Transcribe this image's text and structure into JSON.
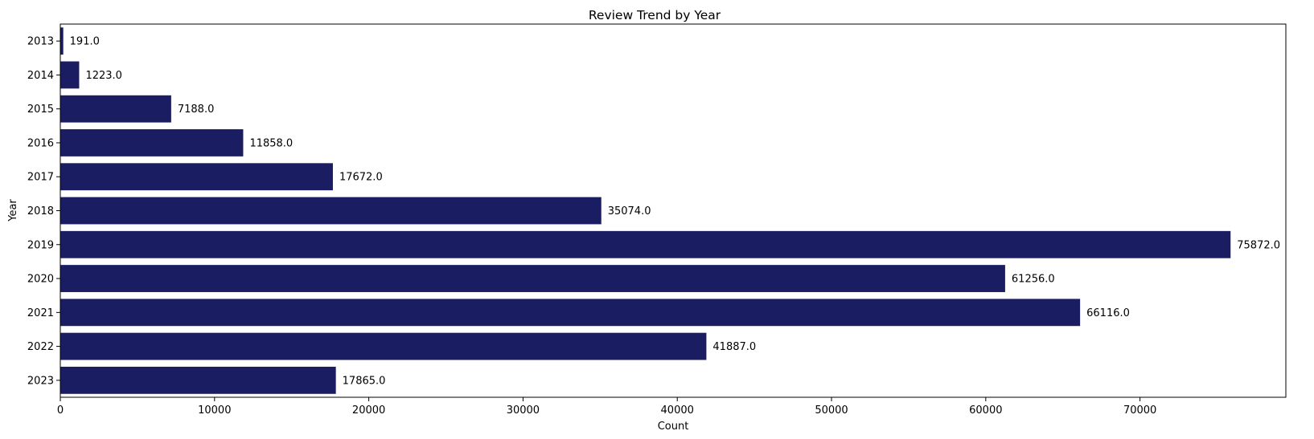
{
  "chart_data": {
    "type": "bar",
    "orientation": "horizontal",
    "title": "Review Trend by Year",
    "xlabel": "Count",
    "ylabel": "Year",
    "categories": [
      "2013",
      "2014",
      "2015",
      "2016",
      "2017",
      "2018",
      "2019",
      "2020",
      "2021",
      "2022",
      "2023"
    ],
    "values": [
      191,
      1223,
      7188,
      11858,
      17672,
      35074,
      75872,
      61256,
      66116,
      41887,
      17865
    ],
    "data_labels": [
      "191.0",
      "1223.0",
      "7188.0",
      "11858.0",
      "17672.0",
      "35074.0",
      "75872.0",
      "61256.0",
      "66116.0",
      "41887.0",
      "17865.0"
    ],
    "xlim": [
      0,
      79456
    ],
    "xticks": [
      0,
      10000,
      20000,
      30000,
      40000,
      50000,
      60000,
      70000
    ],
    "bar_color": "#1b1d63",
    "grid": false,
    "legend": false
  }
}
